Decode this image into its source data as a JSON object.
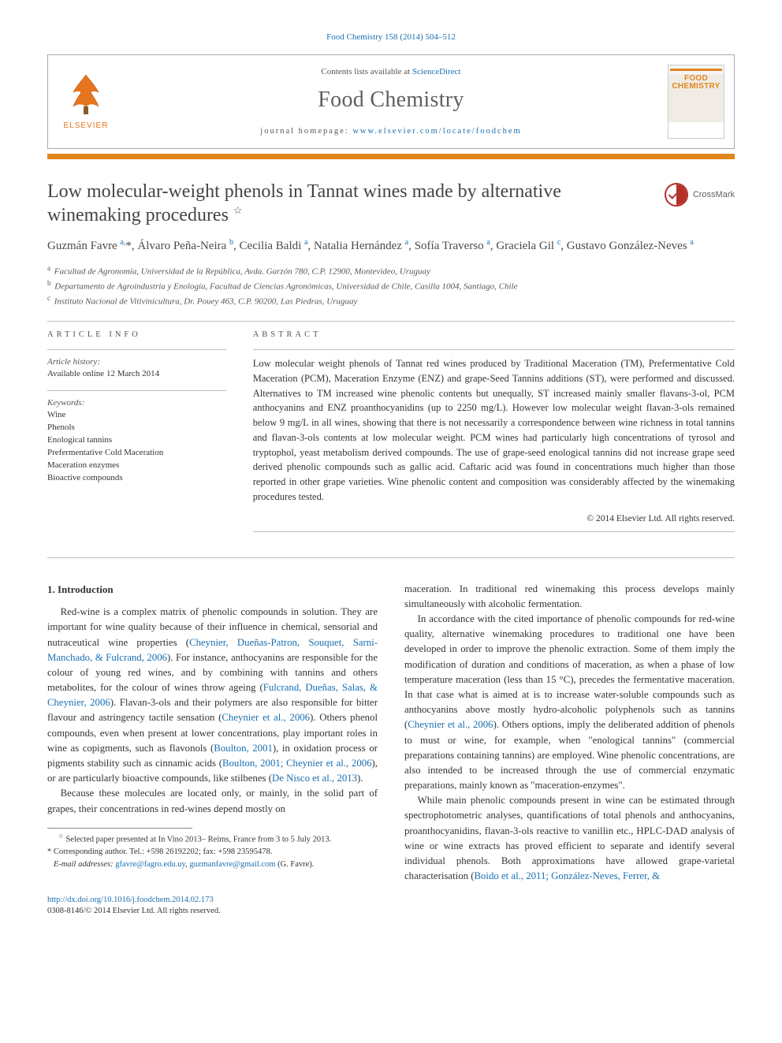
{
  "colors": {
    "accent_orange": "#e0861d",
    "link_blue": "#1a6fb0",
    "text_gray": "#5f5f5f",
    "rule_gray": "#bdbdbd",
    "crossmark_red": "#b5302a"
  },
  "top_citation": "Food Chemistry 158 (2014) 504–512",
  "header": {
    "contents_prefix": "Contents lists available at ",
    "contents_link": "ScienceDirect",
    "journal_title": "Food Chemistry",
    "homepage_prefix": "journal homepage: ",
    "homepage_url": "www.elsevier.com/locate/foodchem",
    "elsevier_label": "ELSEVIER",
    "cover_text1": "FOOD",
    "cover_text2": "CHEMISTRY"
  },
  "crossmark_label": "CrossMark",
  "article": {
    "title": "Low molecular-weight phenols in Tannat wines made by alternative winemaking procedures",
    "title_note_marker": "☆",
    "authors_html": "Guzmán Favre <sup>a,</sup>*, Álvaro Peña-Neira <sup>b</sup>, Cecilia Baldi <sup>a</sup>, Natalia Hernández <sup>a</sup>, Sofía Traverso <sup>a</sup>, Graciela Gil <sup>c</sup>, Gustavo González-Neves <sup>a</sup>",
    "affiliations": [
      {
        "sup": "a",
        "text": "Facultad de Agronomía, Universidad de la República, Avda. Garzón 780, C.P. 12900, Montevideo, Uruguay"
      },
      {
        "sup": "b",
        "text": "Departamento de Agroindustria y Enología, Facultad de Ciencias Agronómicas, Universidad de Chile, Casilla 1004, Santiago, Chile"
      },
      {
        "sup": "c",
        "text": "Instituto Nacional de Vitivinicultura, Dr. Pouey 463, C.P. 90200, Las Piedras, Uruguay"
      }
    ]
  },
  "info": {
    "heading": "ARTICLE INFO",
    "history_label": "Article history:",
    "history_value": "Available online 12 March 2014",
    "keywords_label": "Keywords:",
    "keywords": [
      "Wine",
      "Phenols",
      "Enological tannins",
      "Prefermentative Cold Maceration",
      "Maceration enzymes",
      "Bioactive compounds"
    ]
  },
  "abstract": {
    "heading": "ABSTRACT",
    "text": "Low molecular weight phenols of Tannat red wines produced by Traditional Maceration (TM), Prefermentative Cold Maceration (PCM), Maceration Enzyme (ENZ) and grape-Seed Tannins additions (ST), were performed and discussed. Alternatives to TM increased wine phenolic contents but unequally, ST increased mainly smaller flavans-3-ol, PCM anthocyanins and ENZ proanthocyanidins (up to 2250 mg/L). However low molecular weight flavan-3-ols remained below 9 mg/L in all wines, showing that there is not necessarily a correspondence between wine richness in total tannins and flavan-3-ols contents at low molecular weight. PCM wines had particularly high concentrations of tyrosol and tryptophol, yeast metabolism derived compounds. The use of grape-seed enological tannins did not increase grape seed derived phenolic compounds such as gallic acid. Caftaric acid was found in concentrations much higher than those reported in other grape varieties. Wine phenolic content and composition was considerably affected by the winemaking procedures tested.",
    "copyright": "© 2014 Elsevier Ltd. All rights reserved."
  },
  "body": {
    "section_title": "1. Introduction",
    "p1": "Red-wine is a complex matrix of phenolic compounds in solution. They are important for wine quality because of their influence in chemical, sensorial and nutraceutical wine properties (",
    "c1": "Cheynier, Dueñas-Patron, Souquet, Sarni-Manchado, & Fulcrand, 2006",
    "p1b": "). For instance, anthocyanins are responsible for the colour of young red wines, and by combining with tannins and others metabolites, for the colour of wines throw ageing (",
    "c2": "Fulcrand, Dueñas, Salas, & Cheynier, 2006",
    "p1c": "). Flavan-3-ols and their polymers are also responsible for bitter flavour and astringency tactile sensation (",
    "c3": "Cheynier et al., 2006",
    "p1d": "). Others phenol compounds, even when present at lower concentrations, play important roles in wine as copigments, such as flavonols (",
    "c4": "Boulton, 2001",
    "p1e": "), in oxidation process or pigments stability such as cinnamic acids (",
    "c5": "Boulton, 2001; Cheynier et al., 2006",
    "p1f": "), or are particularly bioactive compounds, like stilbenes (",
    "c6": "De Nisco et al., 2013",
    "p1g": ").",
    "p2": "Because these molecules are located only, or mainly, in the solid part of grapes, their concentrations in red-wines depend mostly on",
    "p3": "maceration. In traditional red winemaking this process develops mainly simultaneously with alcoholic fermentation.",
    "p4a": "In accordance with the cited importance of phenolic compounds for red-wine quality, alternative winemaking procedures to traditional one have been developed in order to improve the phenolic extraction. Some of them imply the modification of duration and conditions of maceration, as when a phase of low temperature maceration (less than 15 °C), precedes the fermentative maceration. In that case what is aimed at is to increase water-soluble compounds such as anthocyanins above mostly hydro-alcoholic polyphenols such as tannins (",
    "c7": "Cheynier et al., 2006",
    "p4b": "). Others options, imply the deliberated addition of phenols to must or wine, for example, when \"enological tannins\" (commercial preparations containing tannins) are employed. Wine phenolic concentrations, are also intended to be increased through the use of commercial enzymatic preparations, mainly known as \"maceration-enzymes\".",
    "p5a": "While main phenolic compounds present in wine can be estimated through spectrophotometric analyses, quantifications of total phenols and anthocyanins, proanthocyanidins, flavan-3-ols reactive to vanillin etc., HPLC-DAD analysis of wine or wine extracts has proved efficient to separate and identify several individual phenols. Both approximations have allowed grape-varietal characterisation (",
    "c8": "Boido et al., 2011; González-Neves, Ferrer, &"
  },
  "footnotes": {
    "note": "Selected paper presented at In Vino 2013– Reims, France from 3 to 5 July 2013.",
    "corr_label": "Corresponding author. Tel.: +598 26192202; fax: +598 23595478.",
    "email_label": "E-mail addresses:",
    "email1": "gfavre@fagro.edu.uy",
    "email2": "guzmanfavre@gmail.com",
    "email_who": "(G. Favre)."
  },
  "bottom": {
    "doi": "http://dx.doi.org/10.1016/j.foodchem.2014.02.173",
    "issn_line": "0308-8146/© 2014 Elsevier Ltd. All rights reserved."
  }
}
